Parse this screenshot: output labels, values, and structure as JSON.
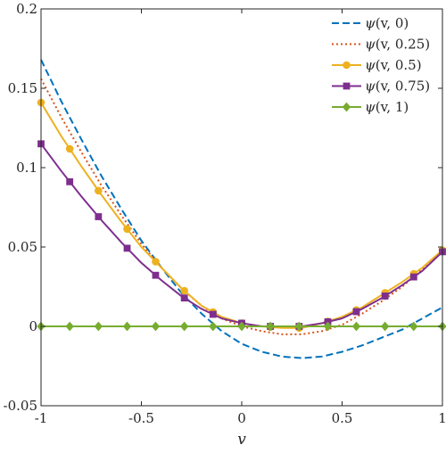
{
  "chart_data": {
    "type": "line",
    "xlabel": "v",
    "ylabel": "",
    "xlim": [
      -1,
      1
    ],
    "ylim": [
      -0.05,
      0.2
    ],
    "xticks": [
      -1,
      -0.5,
      0,
      0.5,
      1
    ],
    "xtick_labels": [
      "-1",
      "-0.5",
      "0",
      "0.5",
      "1"
    ],
    "yticks": [
      -0.05,
      0,
      0.05,
      0.1,
      0.15,
      0.2
    ],
    "ytick_labels": [
      "-0.05",
      "0",
      "0.05",
      "0.1",
      "0.15",
      "0.2"
    ],
    "grid": false,
    "legend_position": "top-right",
    "x": [
      -1.0,
      -0.9,
      -0.8,
      -0.7,
      -0.6,
      -0.5,
      -0.4,
      -0.3,
      -0.2,
      -0.1,
      0.0,
      0.1,
      0.2,
      0.3,
      0.4,
      0.5,
      0.6,
      0.7,
      0.8,
      0.9,
      1.0
    ],
    "marker_x": [
      -1.0,
      -0.857,
      -0.714,
      -0.571,
      -0.429,
      -0.286,
      -0.143,
      0.0,
      0.143,
      0.286,
      0.429,
      0.571,
      0.714,
      0.857,
      1.0
    ],
    "series": [
      {
        "name": "ψ(v,0)",
        "label_func": "ψ",
        "label_args": "v,0",
        "color": "#0072BD",
        "style": "dashed",
        "marker": "none",
        "values": [
          0.168,
          0.142,
          0.118,
          0.095,
          0.074,
          0.054,
          0.037,
          0.021,
          0.008,
          -0.003,
          -0.011,
          -0.016,
          -0.019,
          -0.02,
          -0.019,
          -0.016,
          -0.012,
          -0.007,
          -0.002,
          0.005,
          0.012
        ]
      },
      {
        "name": "ψ(v,0.25)",
        "label_func": "ψ",
        "label_args": "v,0.25",
        "color": "#D95319",
        "style": "dotted",
        "marker": "none",
        "values": [
          0.156,
          0.132,
          0.11,
          0.089,
          0.07,
          0.052,
          0.037,
          0.024,
          0.013,
          0.005,
          0.0,
          -0.003,
          -0.005,
          -0.005,
          -0.003,
          0.001,
          0.008,
          0.016,
          0.025,
          0.036,
          0.048
        ]
      },
      {
        "name": "ψ(v,0.5)",
        "label_func": "ψ",
        "label_args": "v,0.5",
        "color": "#EDB120",
        "style": "solid",
        "marker": "circle",
        "values": [
          0.141,
          0.12,
          0.101,
          0.083,
          0.066,
          0.05,
          0.037,
          0.024,
          0.013,
          0.006,
          0.002,
          0.0,
          -0.001,
          -0.001,
          0.002,
          0.006,
          0.012,
          0.02,
          0.028,
          0.037,
          0.048
        ]
      },
      {
        "name": "ψ(v,0.75)",
        "label_func": "ψ",
        "label_args": "v,0.75",
        "color": "#7E2F8E",
        "style": "solid",
        "marker": "square",
        "values": [
          0.115,
          0.098,
          0.082,
          0.067,
          0.053,
          0.04,
          0.029,
          0.019,
          0.011,
          0.005,
          0.002,
          0.0,
          0.0,
          0.0,
          0.002,
          0.005,
          0.011,
          0.018,
          0.026,
          0.035,
          0.047
        ]
      },
      {
        "name": "ψ(v,1)",
        "label_func": "ψ",
        "label_args": "v,1",
        "color": "#77AC30",
        "style": "solid",
        "marker": "diamond",
        "values": [
          0,
          0,
          0,
          0,
          0,
          0,
          0,
          0,
          0,
          0,
          0,
          0,
          0,
          0,
          0,
          0,
          0,
          0,
          0,
          0,
          0
        ]
      }
    ]
  }
}
